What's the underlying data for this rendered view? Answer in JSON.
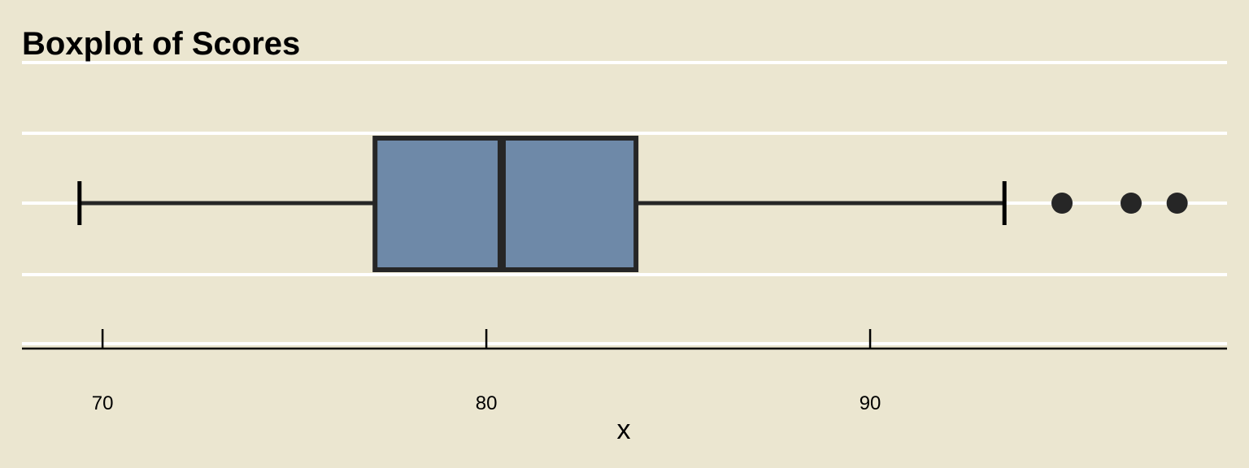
{
  "chart_data": {
    "type": "boxplot",
    "title": "Boxplot of Scores",
    "xlabel": "x",
    "ylabel": "",
    "xlim": [
      67.9,
      99.3
    ],
    "xticks": [
      70,
      80,
      90
    ],
    "xtick_labels": [
      "70",
      "80",
      "90"
    ],
    "grid": true,
    "orientation": "horizontal",
    "box": {
      "whisker_low": 69.4,
      "q1": 77.1,
      "median": 80.4,
      "q3": 83.9,
      "whisker_high": 93.5,
      "outliers": [
        95.0,
        96.8,
        98.0
      ]
    },
    "colors": {
      "background": "#ebe6d0",
      "box_fill": "#6e89a8",
      "box_edge": "#262626",
      "gridline": "#ffffff",
      "axis": "#000000"
    }
  }
}
